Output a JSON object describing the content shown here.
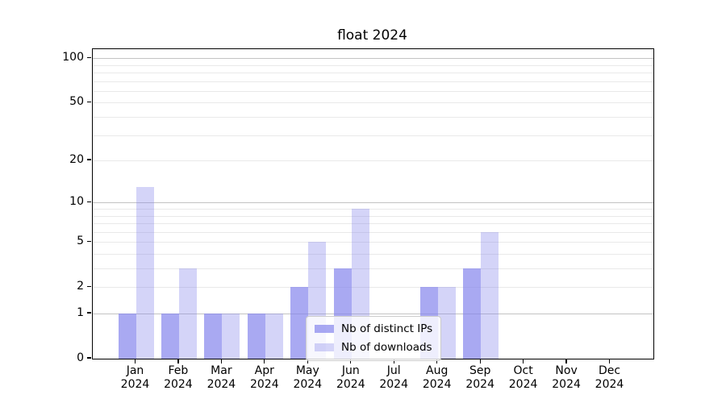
{
  "chart_data": {
    "type": "bar",
    "title": "float 2024",
    "scale": "log1p",
    "ylim": [
      0,
      110
    ],
    "grid": "on",
    "yticks": [
      0,
      1,
      2,
      5,
      10,
      20,
      50,
      100
    ],
    "grid_minor": [
      2,
      3,
      4,
      5,
      6,
      7,
      8,
      9,
      20,
      30,
      40,
      50,
      60,
      70,
      80,
      90
    ],
    "grid_major": [
      1,
      10,
      100
    ],
    "categories": [
      {
        "month": "Jan",
        "year": "2024"
      },
      {
        "month": "Feb",
        "year": "2024"
      },
      {
        "month": "Mar",
        "year": "2024"
      },
      {
        "month": "Apr",
        "year": "2024"
      },
      {
        "month": "May",
        "year": "2024"
      },
      {
        "month": "Jun",
        "year": "2024"
      },
      {
        "month": "Jul",
        "year": "2024"
      },
      {
        "month": "Aug",
        "year": "2024"
      },
      {
        "month": "Sep",
        "year": "2024"
      },
      {
        "month": "Oct",
        "year": "2024"
      },
      {
        "month": "Nov",
        "year": "2024"
      },
      {
        "month": "Dec",
        "year": "2024"
      }
    ],
    "series": [
      {
        "name": "Nb of distinct IPs",
        "color": "rgba(132,132,236,0.70)",
        "values": [
          1,
          1,
          1,
          1,
          2,
          3,
          0,
          2,
          3,
          0,
          0,
          0
        ]
      },
      {
        "name": "Nb of downloads",
        "color": "rgba(132,132,236,0.35)",
        "values": [
          13,
          3,
          1,
          1,
          5,
          9,
          0,
          2,
          6,
          0,
          0,
          0
        ]
      }
    ],
    "legend_position": "lower center",
    "colors": {
      "bar_base": "#8484ec",
      "grid_minor": "#e9e9e9",
      "grid_major": "#c3c3c3",
      "spine": "#000000"
    }
  }
}
